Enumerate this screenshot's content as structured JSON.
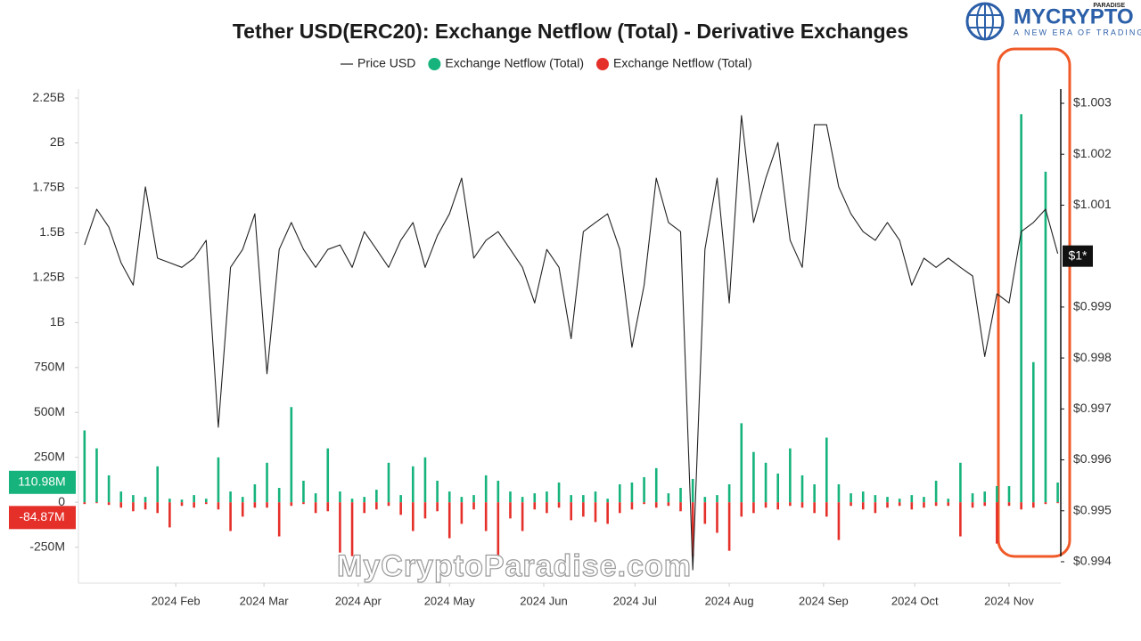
{
  "chart_data": {
    "type": "bar-line",
    "title": "Tether USD(ERC20): Exchange Netflow (Total) - Derivative Exchanges",
    "x": [
      2,
      6,
      10,
      14,
      18,
      22,
      26,
      30,
      34,
      38,
      42,
      46,
      50,
      54,
      58,
      62,
      66,
      70,
      74,
      78,
      82,
      86,
      90,
      94,
      98,
      102,
      106,
      110,
      114,
      118,
      122,
      126,
      130,
      134,
      138,
      142,
      146,
      150,
      154,
      158,
      162,
      166,
      170,
      174,
      178,
      182,
      186,
      190,
      194,
      198,
      202,
      206,
      210,
      214,
      218,
      222,
      226,
      230,
      234,
      238,
      242,
      246,
      250,
      254,
      258,
      262,
      266,
      270,
      274,
      278,
      282,
      286,
      290,
      294,
      298,
      302,
      306,
      310,
      314,
      318,
      322
    ],
    "xlim": [
      0,
      323
    ],
    "xticks": [
      {
        "value": 32,
        "label": "2024 Feb"
      },
      {
        "value": 61,
        "label": "2024 Mar"
      },
      {
        "value": 92,
        "label": "2024 Apr"
      },
      {
        "value": 122,
        "label": "2024 May"
      },
      {
        "value": 153,
        "label": "2024 Jun"
      },
      {
        "value": 183,
        "label": "2024 Jul"
      },
      {
        "value": 214,
        "label": "2024 Aug"
      },
      {
        "value": 245,
        "label": "2024 Sep"
      },
      {
        "value": 275,
        "label": "2024 Oct"
      },
      {
        "value": 306,
        "label": "2024 Nov"
      }
    ],
    "ylim": [
      -450000000,
      2300000000
    ],
    "yticks": [
      {
        "value": -250000000,
        "label": "-250M"
      },
      0,
      {
        "value": 250000000,
        "label": "250M"
      },
      {
        "value": 500000000,
        "label": "500M"
      },
      {
        "value": 750000000,
        "label": "750M"
      },
      {
        "value": 1000000000,
        "label": "1B"
      },
      {
        "value": 1250000000,
        "label": "1.25B"
      },
      {
        "value": 1500000000,
        "label": "1.5B"
      },
      {
        "value": 1750000000,
        "label": "1.75B"
      },
      {
        "value": 2000000000,
        "label": "2B"
      },
      {
        "value": 2250000000,
        "label": "2.25B"
      }
    ],
    "y2lim": [
      0.99358,
      1.00328
    ],
    "y2ticks": [
      {
        "value": 0.994,
        "label": "$0.994"
      },
      {
        "value": 0.995,
        "label": "$0.995"
      },
      {
        "value": 0.996,
        "label": "$0.996"
      },
      {
        "value": 0.997,
        "label": "$0.997"
      },
      {
        "value": 0.998,
        "label": "$0.998"
      },
      {
        "value": 0.999,
        "label": "$0.999"
      },
      {
        "value": 1.001,
        "label": "$1.001"
      },
      {
        "value": 1.002,
        "label": "$1.002"
      },
      {
        "value": 1.003,
        "label": "$1.003"
      }
    ],
    "grid": false,
    "series": [
      {
        "name": "Price USD",
        "type": "line",
        "axis": "y2",
        "color": "#222222",
        "values": [
          1.00022,
          1.00092,
          1.00057,
          0.99987,
          0.99943,
          1.00136,
          0.99996,
          0.99987,
          0.99978,
          0.99996,
          1.00031,
          0.99664,
          0.99978,
          1.00013,
          1.00083,
          0.99769,
          1.00013,
          1.00066,
          1.00013,
          0.99978,
          1.00013,
          1.00022,
          0.99978,
          1.00048,
          1.00013,
          0.99978,
          1.00031,
          1.00066,
          0.99978,
          1.0004,
          1.00083,
          1.00153,
          0.99996,
          1.00031,
          1.00048,
          1.00013,
          0.99978,
          0.99908,
          1.00013,
          0.99978,
          0.99838,
          1.00048,
          1.00066,
          1.00083,
          1.00013,
          0.99821,
          0.99943,
          1.00153,
          1.00066,
          1.00048,
          0.99384,
          1.00013,
          1.00153,
          0.99908,
          1.00276,
          1.00066,
          1.00153,
          1.00223,
          1.00031,
          0.99978,
          1.00258,
          1.00258,
          1.00136,
          1.00083,
          1.00048,
          1.00031,
          1.00066,
          1.00031,
          0.99943,
          0.99996,
          0.99978,
          0.99996,
          0.99978,
          0.99961,
          0.99803,
          0.99926,
          0.99908,
          1.00048,
          1.00066,
          1.00092,
          1.00005
        ]
      },
      {
        "name": "Exchange Netflow (Total)",
        "type": "bar",
        "color": "#16b37c",
        "values": [
          400000000,
          300000000,
          150000000,
          60000000,
          40000000,
          30000000,
          200000000,
          20000000,
          15000000,
          40000000,
          20000000,
          250000000,
          60000000,
          30000000,
          100000000,
          220000000,
          80000000,
          530000000,
          120000000,
          50000000,
          300000000,
          60000000,
          20000000,
          30000000,
          70000000,
          220000000,
          40000000,
          200000000,
          250000000,
          120000000,
          60000000,
          30000000,
          40000000,
          150000000,
          120000000,
          60000000,
          30000000,
          50000000,
          60000000,
          110000000,
          40000000,
          40000000,
          60000000,
          20000000,
          100000000,
          110000000,
          140000000,
          190000000,
          50000000,
          80000000,
          130000000,
          30000000,
          40000000,
          100000000,
          440000000,
          280000000,
          220000000,
          160000000,
          300000000,
          150000000,
          100000000,
          360000000,
          100000000,
          50000000,
          60000000,
          40000000,
          30000000,
          20000000,
          40000000,
          30000000,
          120000000,
          20000000,
          220000000,
          50000000,
          60000000,
          90000000,
          90000000,
          2160000000,
          780000000,
          1840000000,
          110000000
        ]
      },
      {
        "name": "Exchange Netflow (Total)",
        "type": "bar",
        "color": "#e5302a",
        "values": [
          -10000000,
          -5000000,
          -15000000,
          -30000000,
          -50000000,
          -40000000,
          -60000000,
          -140000000,
          -20000000,
          -30000000,
          -10000000,
          -40000000,
          -160000000,
          -80000000,
          -30000000,
          -30000000,
          -190000000,
          -20000000,
          -10000000,
          -60000000,
          -50000000,
          -280000000,
          -300000000,
          -60000000,
          -40000000,
          -20000000,
          -70000000,
          -160000000,
          -90000000,
          -50000000,
          -200000000,
          -120000000,
          -40000000,
          -160000000,
          -310000000,
          -90000000,
          -160000000,
          -40000000,
          -60000000,
          -30000000,
          -100000000,
          -80000000,
          -110000000,
          -120000000,
          -60000000,
          -40000000,
          -10000000,
          -30000000,
          -20000000,
          -50000000,
          -300000000,
          -120000000,
          -170000000,
          -270000000,
          -80000000,
          -60000000,
          -30000000,
          -40000000,
          -20000000,
          -30000000,
          -60000000,
          -80000000,
          -210000000,
          -20000000,
          -40000000,
          -60000000,
          -30000000,
          -20000000,
          -40000000,
          -30000000,
          -20000000,
          -20000000,
          -190000000,
          -30000000,
          -20000000,
          -230000000,
          -20000000,
          -40000000,
          -30000000,
          -10000000,
          -5000000
        ]
      }
    ],
    "y_markers": [
      {
        "value": 110980000,
        "label": "110.98M",
        "color": "#16b37c"
      },
      {
        "value": -84870000,
        "label": "-84.87M",
        "color": "#e5302a"
      }
    ],
    "y2_markers": [
      {
        "value": 1,
        "label": "$1*",
        "color": "#111111"
      }
    ]
  },
  "watermark": "MyCryptoParadise.com",
  "logo": {
    "name": "MYCRYPTO",
    "badge": "PARADISE",
    "tagline": "A NEW ERA OF TRADING"
  }
}
